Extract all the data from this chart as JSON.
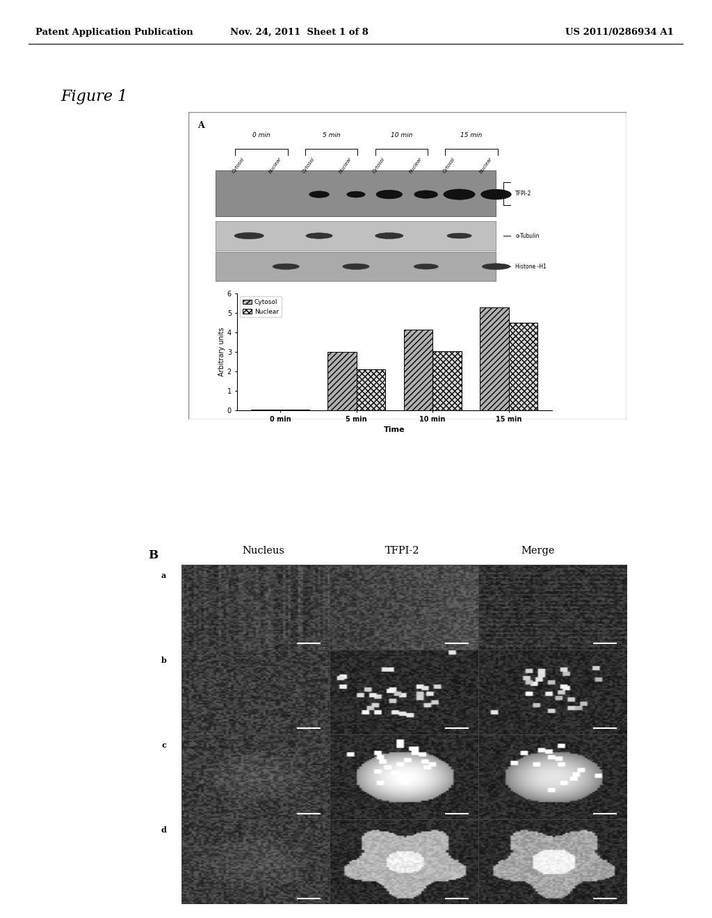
{
  "header_left": "Patent Application Publication",
  "header_mid": "Nov. 24, 2011  Sheet 1 of 8",
  "header_right": "US 2011/0286934 A1",
  "figure_label": "Figure 1",
  "panel_a_label": "A",
  "panel_b_label": "B",
  "bar_categories": [
    "0 min",
    "5 min",
    "10 min",
    "15 min"
  ],
  "cytosol_values": [
    0.05,
    3.0,
    4.15,
    5.3
  ],
  "nuclear_values": [
    0.05,
    2.1,
    3.05,
    4.5
  ],
  "ylabel": "Arbitrary units",
  "xlabel": "Time",
  "ylim": [
    0,
    6
  ],
  "yticks": [
    0,
    1,
    2,
    3,
    4,
    5,
    6
  ],
  "legend_cytosol": "Cytosol",
  "legend_nuclear": "Nuclear",
  "time_labels": [
    "0 min",
    "5 min",
    "10 min",
    "15 min"
  ],
  "col_labels": [
    "Nucleus",
    "TFPI-2",
    "Merge"
  ],
  "row_labels": [
    "a",
    "b",
    "c",
    "d"
  ],
  "bg_color": "#ffffff",
  "label_tfpi2": "TFPI-2",
  "label_tubulin": "α-Tubulin",
  "label_histone": "Histone -H1"
}
